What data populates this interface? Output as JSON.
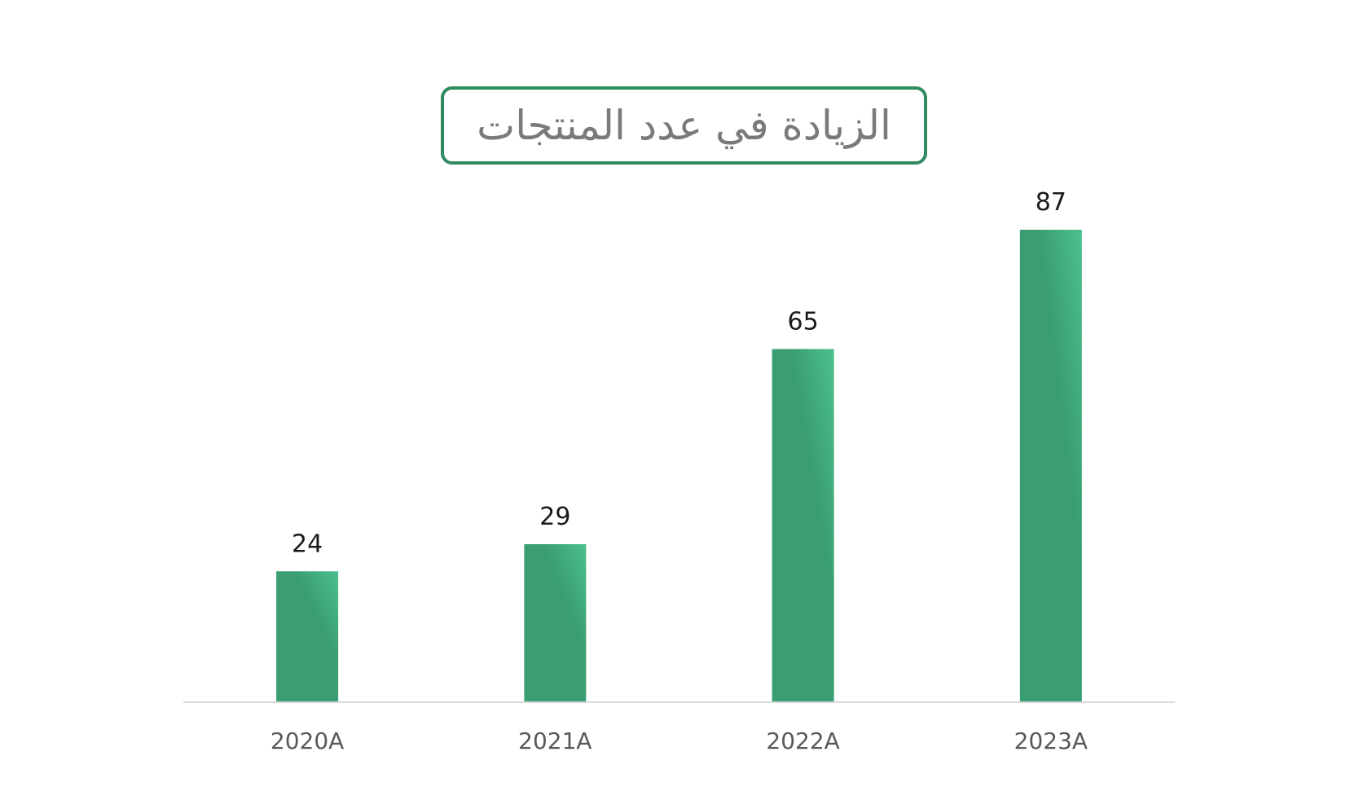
{
  "chart_data": {
    "type": "bar",
    "title": "الزيادة في عدد المنتجات",
    "categories": [
      "2020A",
      "2021A",
      "2022A",
      "2023A"
    ],
    "values": [
      24,
      29,
      65,
      87
    ],
    "xlabel": "",
    "ylabel": "",
    "ylim": [
      0,
      87
    ],
    "grid": false,
    "data_labels": true,
    "legend": "none",
    "colors": {
      "bar_light": "#4cc08f",
      "bar_dark": "#3a9e72",
      "title_border": "#2f8a5f",
      "title_text": "#7a7a7a",
      "axis_line": "#d9d9d9",
      "tick_label": "#595959",
      "data_label": "#1a1a1a"
    }
  }
}
